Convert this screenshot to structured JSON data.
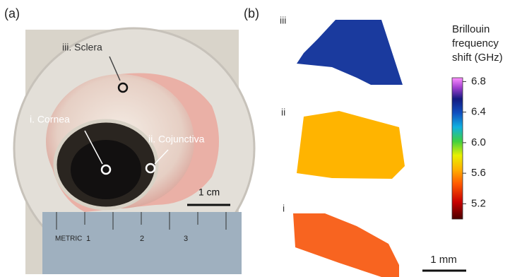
{
  "panel_a": {
    "label": "(a)",
    "annotations": [
      "iii. Sclera",
      "i. Cornea",
      "ii. Cojunctiva"
    ],
    "scale_bar": "1 cm",
    "ruler_text": [
      "METRIC",
      "1",
      "2",
      "3"
    ]
  },
  "panel_b": {
    "label": "(b)",
    "map_labels": [
      "iii",
      "ii",
      "i"
    ],
    "scale_bar": "1 mm",
    "colorbar": {
      "title": [
        "Brillouin",
        "frequency",
        "shift (GHz)"
      ],
      "lim": [
        5.0,
        6.85
      ],
      "ticks": [
        {
          "value": 5.2,
          "label": "5.2"
        },
        {
          "value": 5.6,
          "label": "5.6"
        },
        {
          "value": 6,
          "label": "6.0"
        },
        {
          "value": 6.4,
          "label": "6.4"
        },
        {
          "value": 6.8,
          "label": "6.8"
        }
      ]
    }
  }
}
